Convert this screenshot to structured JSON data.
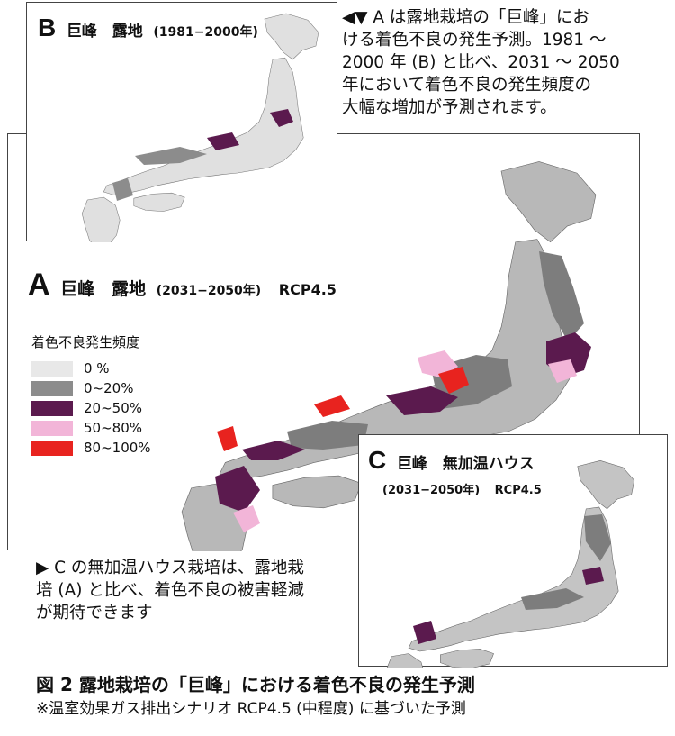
{
  "panel_b": {
    "letter": "B",
    "label": "巨峰　露地",
    "period": "(1981−2000年)"
  },
  "panel_a": {
    "letter": "A",
    "label": "巨峰　露地",
    "period": "(2031−2050年)",
    "scenario": "RCP4.5"
  },
  "panel_c": {
    "letter": "C",
    "label": "巨峰　無加温ハウス",
    "period": "(2031−2050年)",
    "scenario": "RCP4.5"
  },
  "note_top": [
    "◀▼ A は露地栽培の「巨峰」にお",
    "ける着色不良の発生予測。1981 〜",
    "2000 年 (B) と比べ、2031 〜 2050",
    "年において着色不良の発生頻度の",
    "大幅な増加が予測されます。"
  ],
  "note_mid": [
    "▶ C の無加温ハウス栽培は、露地栽",
    "培 (A) と比べ、着色不良の被害軽減",
    "が期待できます"
  ],
  "legend": {
    "title": "着色不良発生頻度",
    "items": [
      {
        "label": "0 %",
        "color": "#e8e8e8"
      },
      {
        "label": "0~20%",
        "color": "#8c8c8c"
      },
      {
        "label": "20~50%",
        "color": "#5b1a4e"
      },
      {
        "label": "50~80%",
        "color": "#f2b5d8"
      },
      {
        "label": "80~100%",
        "color": "#e8231f"
      }
    ]
  },
  "caption": {
    "title": "図 2 露地栽培の「巨峰」における着色不良の発生予測",
    "note": "※温室効果ガス排出シナリオ RCP4.5 (中程度) に基づいた予測"
  }
}
